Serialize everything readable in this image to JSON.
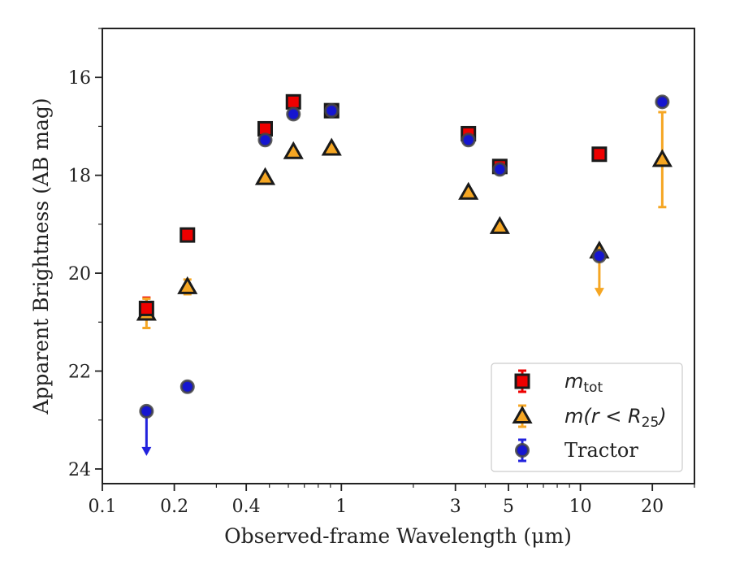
{
  "chart_data": {
    "type": "scatter",
    "xlabel": "Observed-frame Wavelength (μm)",
    "ylabel": "Apparent Brightness (AB mag)",
    "x_scale": "log",
    "xlim": [
      0.1,
      30
    ],
    "ylim": [
      24.3,
      15
    ],
    "y_inverted": true,
    "x_ticks": [
      {
        "value": 0.1,
        "label": "0.1"
      },
      {
        "value": 0.2,
        "label": "0.2"
      },
      {
        "value": 0.4,
        "label": "0.4"
      },
      {
        "value": 1,
        "label": "1"
      },
      {
        "value": 3,
        "label": "3"
      },
      {
        "value": 5,
        "label": "5"
      },
      {
        "value": 10,
        "label": "10"
      },
      {
        "value": 20,
        "label": "20"
      }
    ],
    "y_ticks": [
      {
        "value": 16,
        "label": "16"
      },
      {
        "value": 18,
        "label": "18"
      },
      {
        "value": 20,
        "label": "20"
      },
      {
        "value": 22,
        "label": "22"
      },
      {
        "value": 24,
        "label": "24"
      }
    ],
    "legend_position": "lower-right",
    "series": [
      {
        "name": "m_tot",
        "legend_label": {
          "main": "m",
          "sub": "tot"
        },
        "marker": "square",
        "color": "#ee0000",
        "edgecolor": "#1a1a1a",
        "points": [
          {
            "x": 0.153,
            "y": 20.72,
            "yerr": 0.22
          },
          {
            "x": 0.227,
            "y": 19.22
          },
          {
            "x": 0.48,
            "y": 17.05
          },
          {
            "x": 0.63,
            "y": 16.5
          },
          {
            "x": 0.91,
            "y": 16.68
          },
          {
            "x": 3.4,
            "y": 17.15
          },
          {
            "x": 4.6,
            "y": 17.82
          },
          {
            "x": 12.0,
            "y": 17.57
          }
        ]
      },
      {
        "name": "m(r < R25)",
        "legend_label": {
          "main": "m(r < R",
          "sub": "25",
          "tail": ")"
        },
        "marker": "triangle",
        "color": "#f5a623",
        "edgecolor": "#1a1a1a",
        "points": [
          {
            "x": 0.153,
            "y": 20.82,
            "yerr": 0.3
          },
          {
            "x": 0.227,
            "y": 20.28,
            "yerr": 0.15
          },
          {
            "x": 0.48,
            "y": 18.05
          },
          {
            "x": 0.63,
            "y": 17.52
          },
          {
            "x": 0.91,
            "y": 17.45
          },
          {
            "x": 3.4,
            "y": 18.35
          },
          {
            "x": 4.6,
            "y": 19.05
          },
          {
            "x": 12.0,
            "y": 19.55,
            "upper_limit": true,
            "arrow_to": 20.45
          },
          {
            "x": 22.0,
            "y": 17.68,
            "yerr": 0.97
          }
        ]
      },
      {
        "name": "Tractor",
        "legend_label": {
          "main": "Tractor"
        },
        "marker": "circle",
        "color": "#1515d0",
        "edgecolor": "#444444",
        "points": [
          {
            "x": 0.153,
            "y": 22.82,
            "upper_limit": true,
            "arrow_to": 23.7
          },
          {
            "x": 0.227,
            "y": 22.32
          },
          {
            "x": 0.48,
            "y": 17.28
          },
          {
            "x": 0.63,
            "y": 16.75
          },
          {
            "x": 0.91,
            "y": 16.68
          },
          {
            "x": 3.4,
            "y": 17.28
          },
          {
            "x": 4.6,
            "y": 17.88
          },
          {
            "x": 12.0,
            "y": 19.65
          },
          {
            "x": 22.0,
            "y": 16.5
          }
        ]
      }
    ]
  }
}
